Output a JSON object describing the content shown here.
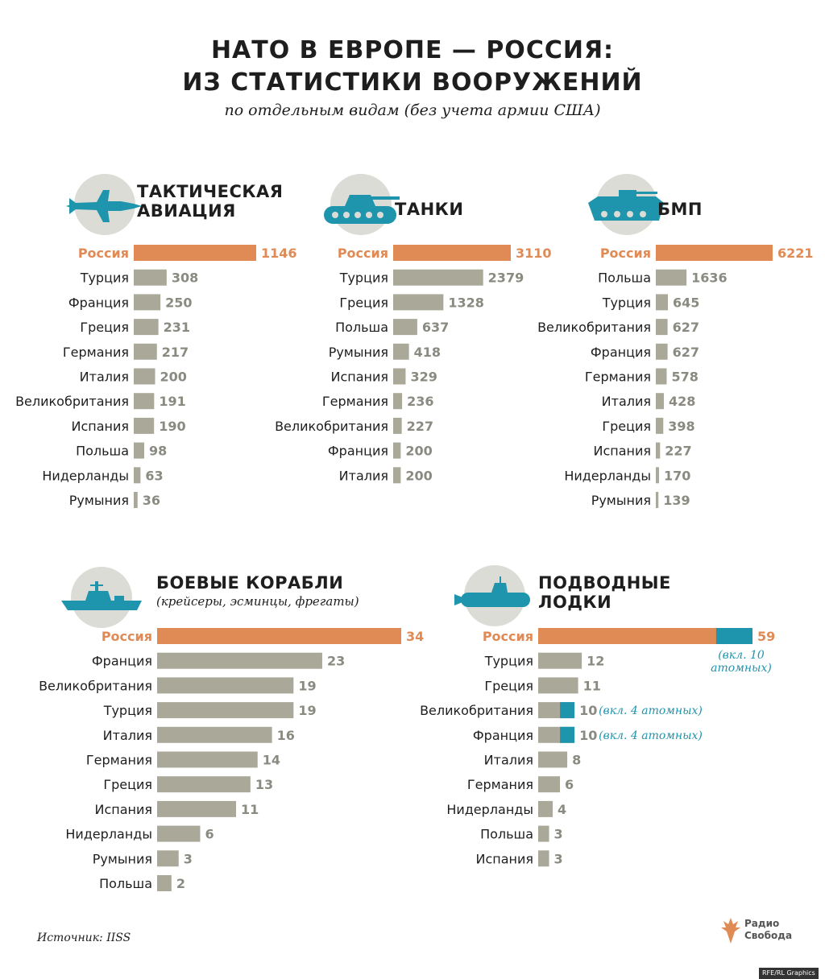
{
  "header": {
    "title_line1": "НАТО В ЕВРОПЕ — РОССИЯ:",
    "title_line2": "ИЗ СТАТИСТИКИ ВООРУЖЕНИЙ",
    "subtitle": "по отдельным видам (без учета армии США)"
  },
  "colors": {
    "russia": "#e08a55",
    "nato": "#aaa999",
    "nuclear": "#1f95ad",
    "icon_circle": "#dcdcd6",
    "icon_fill": "#1f95ad",
    "text": "#1e1e1e"
  },
  "charts": {
    "aviation": {
      "title_line1": "ТАКТИЧЕСКАЯ",
      "title_line2": "АВИАЦИЯ",
      "icon": "fighter-jet-icon"
    },
    "tanks": {
      "title_line1": "ТАНКИ",
      "icon": "tank-icon"
    },
    "bmp": {
      "title_line1": "БМП",
      "icon": "ifv-icon"
    },
    "ships": {
      "title_line1": "БОЕВЫЕ КОРАБЛИ",
      "subtitle": "(крейсеры, эсминцы, фрегаты)",
      "icon": "warship-icon"
    },
    "subs": {
      "title_line1": "ПОДВОДНЫЕ",
      "title_line2": "ЛОДКИ",
      "icon": "submarine-icon"
    }
  },
  "chart_data": [
    {
      "id": "aviation",
      "type": "bar",
      "orientation": "horizontal",
      "title": "ТАКТИЧЕСКАЯ АВИАЦИЯ",
      "categories": [
        "Россия",
        "Турция",
        "Франция",
        "Греция",
        "Германия",
        "Италия",
        "Великобритания",
        "Испания",
        "Польша",
        "Нидерланды",
        "Румыния"
      ],
      "values": [
        1146,
        308,
        250,
        231,
        217,
        200,
        191,
        190,
        98,
        63,
        36
      ]
    },
    {
      "id": "tanks",
      "type": "bar",
      "orientation": "horizontal",
      "title": "ТАНКИ",
      "categories": [
        "Россия",
        "Турция",
        "Греция",
        "Польша",
        "Румыния",
        "Испания",
        "Германия",
        "Великобритания",
        "Франция",
        "Италия"
      ],
      "values": [
        3110,
        2379,
        1328,
        637,
        418,
        329,
        236,
        227,
        200,
        200
      ]
    },
    {
      "id": "bmp",
      "type": "bar",
      "orientation": "horizontal",
      "title": "БМП",
      "categories": [
        "Россия",
        "Польша",
        "Турция",
        "Великобритания",
        "Франция",
        "Германия",
        "Италия",
        "Греция",
        "Испания",
        "Нидерланды",
        "Румыния"
      ],
      "values": [
        6221,
        1636,
        645,
        627,
        627,
        578,
        428,
        398,
        227,
        170,
        139
      ]
    },
    {
      "id": "ships",
      "type": "bar",
      "orientation": "horizontal",
      "title": "БОЕВЫЕ КОРАБЛИ (крейсеры, эсминцы, фрегаты)",
      "categories": [
        "Россия",
        "Франция",
        "Великобритания",
        "Турция",
        "Италия",
        "Германия",
        "Греция",
        "Испания",
        "Нидерланды",
        "Румыния",
        "Польша"
      ],
      "values": [
        34,
        23,
        19,
        19,
        16,
        14,
        13,
        11,
        6,
        3,
        2
      ]
    },
    {
      "id": "subs",
      "type": "bar",
      "orientation": "horizontal",
      "stacked": true,
      "title": "ПОДВОДНЫЕ ЛОДКИ",
      "categories": [
        "Россия",
        "Турция",
        "Греция",
        "Великобритания",
        "Франция",
        "Италия",
        "Германия",
        "Нидерланды",
        "Польша",
        "Испания"
      ],
      "values": [
        59,
        12,
        11,
        10,
        10,
        8,
        6,
        4,
        3,
        3
      ],
      "nuclear": [
        10,
        0,
        0,
        4,
        4,
        0,
        0,
        0,
        0,
        0
      ],
      "annotations": [
        "(вкл. 10 атомных)",
        "",
        "",
        "(вкл. 4 атомных)",
        "(вкл. 4 атомных)",
        "",
        "",
        "",
        "",
        ""
      ]
    }
  ],
  "footer": {
    "source": "Источник: IISS",
    "logo_line1": "Радио",
    "logo_line2": "Свобода",
    "logo_icon": "radio-svoboda-torch-icon",
    "credit": "RFE/RL Graphics"
  }
}
